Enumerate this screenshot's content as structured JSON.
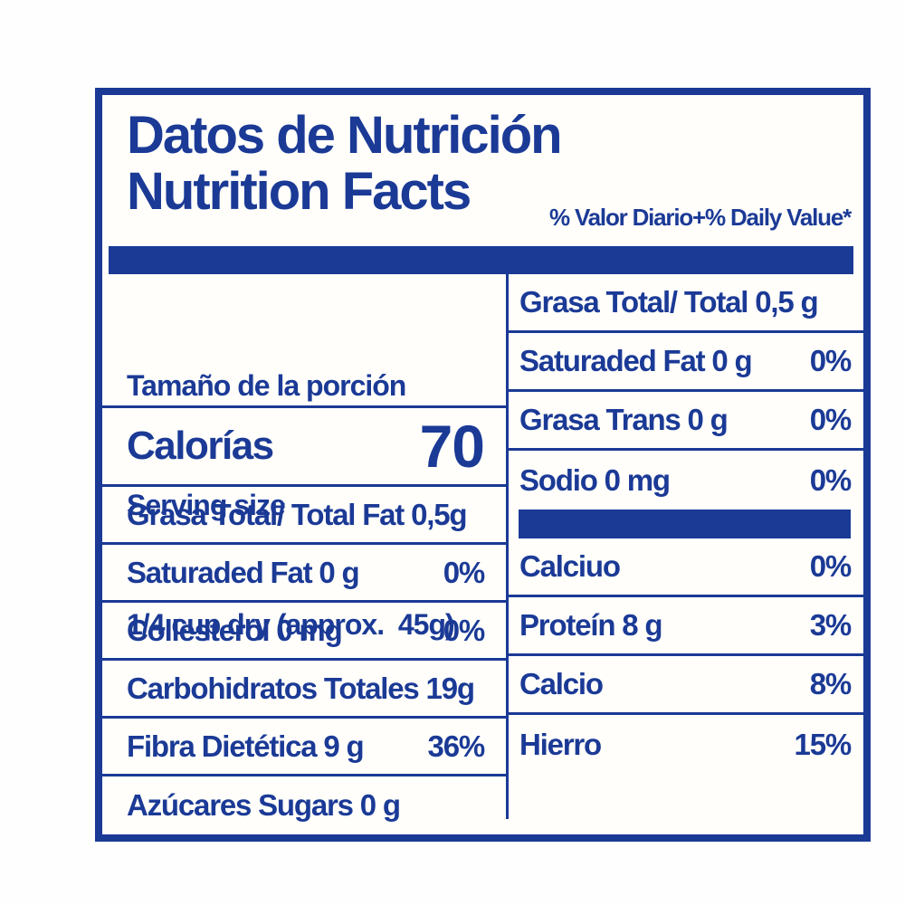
{
  "colors": {
    "navy": "#1b3a96",
    "paper": "#fffefb"
  },
  "header": {
    "title_line1": "Datos de Nutrición",
    "title_line2": "Nutrition Facts",
    "daily_value_note": "% Valor Diario+% Daily Value*"
  },
  "left_column": {
    "serving": {
      "line1": "Tamaño de la porción",
      "line2": "Serving size",
      "line3": "1/4 cup dry (approx.  45g)"
    },
    "calories": {
      "label": "Calorías",
      "value": "70"
    },
    "rows": [
      {
        "label": "Grasa Total/ Total Fat 0,5g",
        "value": ""
      },
      {
        "label": "Saturaded Fat 0 g",
        "value": "0%"
      },
      {
        "label": "Collesterol 0 mg",
        "value": "0%"
      },
      {
        "label": "Carbohidratos Totales 19g",
        "value": ""
      },
      {
        "label": "Fibra Dietética 9 g",
        "value": "36%"
      },
      {
        "label": "Azúcares Sugars 0 g",
        "value": ""
      }
    ]
  },
  "right_column": {
    "rows_top": [
      {
        "label": "Grasa Total/ Total 0,5 g",
        "value": ""
      },
      {
        "label": "Saturaded Fat 0 g",
        "value": "0%"
      },
      {
        "label": "Grasa Trans 0 g",
        "value": "0%"
      },
      {
        "label": "Sodio 0 mg",
        "value": "0%"
      }
    ],
    "rows_bottom": [
      {
        "label": "Calciuo",
        "value": "0%"
      },
      {
        "label": "Proteín 8 g",
        "value": "3%"
      },
      {
        "label": "Calcio",
        "value": "8%"
      },
      {
        "label": "Hierro",
        "value": "15%"
      }
    ]
  }
}
